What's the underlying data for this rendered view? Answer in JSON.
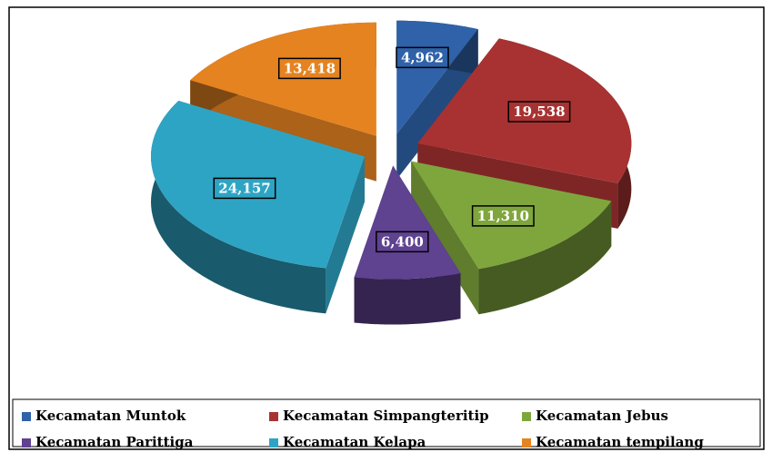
{
  "chart_data": {
    "type": "pie3d",
    "categories": [
      "Kecamatan Muntok",
      "Kecamatan Simpangteritip",
      "Kecamatan Jebus",
      "Kecamatan Parittiga",
      "Kecamatan Kelapa",
      "Kecamatan tempilang"
    ],
    "values": [
      4962,
      19538,
      11310,
      6400,
      24157,
      13418
    ],
    "value_labels": [
      "4,962",
      "19,538",
      "11,310",
      "6,400",
      "24,157",
      "13,418"
    ],
    "colors": [
      "#2f62a8",
      "#a83232",
      "#7fa63c",
      "#5f4290",
      "#2ea4c4",
      "#e58320"
    ],
    "legend": "bottom"
  }
}
